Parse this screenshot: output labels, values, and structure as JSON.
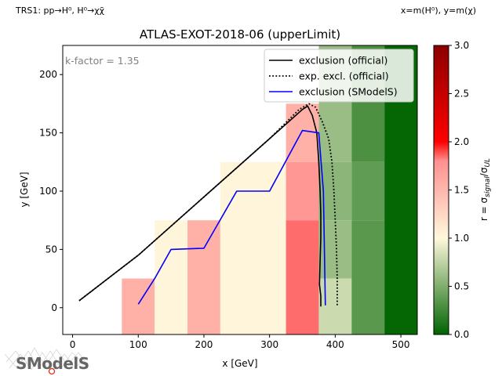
{
  "header": {
    "process_label": "TRS1: pp→H⁰, H⁰→χχ̄",
    "axes_note": "x=m(H⁰), y=m(χ)"
  },
  "logo": {
    "text": "SModelS"
  },
  "chart_data": {
    "type": "heatmap",
    "title": "ATLAS-EXOT-2018-06 (upperLimit)",
    "xlabel": "x [GeV]",
    "ylabel": "y [GeV]",
    "xlim": [
      -15,
      525
    ],
    "ylim": [
      -23,
      225
    ],
    "xticks": [
      0,
      100,
      200,
      300,
      400,
      500
    ],
    "yticks": [
      0,
      50,
      100,
      150,
      200
    ],
    "annotation": "k-factor = 1.35",
    "colorbar": {
      "label": "r = σsignal/σUL",
      "range": [
        0,
        3
      ],
      "ticks": [
        0.0,
        0.5,
        1.0,
        1.5,
        2.0,
        2.5,
        3.0
      ],
      "stops": [
        {
          "v": 0.0,
          "color": "#006400"
        },
        {
          "v": 1.0,
          "color": "#fff8dc"
        },
        {
          "v": 1.8,
          "color": "#ff9090"
        },
        {
          "v": 2.0,
          "color": "#ff0000"
        },
        {
          "v": 3.0,
          "color": "#8b0000"
        }
      ]
    },
    "cells": [
      {
        "x0": 75,
        "x1": 125,
        "y0": -23,
        "y1": 25,
        "r": 1.55
      },
      {
        "x0": 125,
        "x1": 175,
        "y0": -23,
        "y1": 75,
        "r": 1.02
      },
      {
        "x0": 175,
        "x1": 225,
        "y0": -23,
        "y1": 75,
        "r": 1.55
      },
      {
        "x0": 225,
        "x1": 325,
        "y0": -23,
        "y1": 125,
        "r": 1.02
      },
      {
        "x0": 325,
        "x1": 375,
        "y0": 125,
        "y1": 175,
        "r": 1.55
      },
      {
        "x0": 325,
        "x1": 375,
        "y0": 75,
        "y1": 125,
        "r": 1.75
      },
      {
        "x0": 325,
        "x1": 375,
        "y0": -23,
        "y1": 75,
        "r": 1.85
      },
      {
        "x0": 375,
        "x1": 425,
        "y0": 125,
        "y1": 225,
        "r": 0.6
      },
      {
        "x0": 375,
        "x1": 425,
        "y0": 75,
        "y1": 125,
        "r": 0.55
      },
      {
        "x0": 375,
        "x1": 425,
        "y0": 25,
        "y1": 75,
        "r": 0.6
      },
      {
        "x0": 375,
        "x1": 425,
        "y0": -23,
        "y1": 25,
        "r": 0.8
      },
      {
        "x0": 425,
        "x1": 475,
        "y0": 125,
        "y1": 225,
        "r": 0.3
      },
      {
        "x0": 425,
        "x1": 475,
        "y0": 75,
        "y1": 125,
        "r": 0.38
      },
      {
        "x0": 425,
        "x1": 475,
        "y0": -23,
        "y1": 75,
        "r": 0.35
      },
      {
        "x0": 475,
        "x1": 525,
        "y0": -23,
        "y1": 225,
        "r": 0.02
      }
    ],
    "series": [
      {
        "name": "exclusion (official)",
        "style": "solid",
        "color": "#000000",
        "x": [
          10,
          100,
          200,
          300,
          350,
          358,
          365,
          372,
          375,
          377,
          378,
          378,
          377,
          376,
          378,
          378
        ],
        "y": [
          6,
          45,
          95,
          145,
          170,
          173,
          165,
          150,
          125,
          100,
          80,
          60,
          40,
          20,
          10,
          1
        ]
      },
      {
        "name": "exp. excl. (official)",
        "style": "dotted",
        "color": "#000000",
        "x": [
          10,
          100,
          200,
          300,
          345,
          360,
          370,
          380,
          390,
          395,
          398,
          400,
          402,
          403,
          403
        ],
        "y": [
          6,
          45,
          95,
          145,
          170,
          175,
          172,
          160,
          145,
          125,
          100,
          75,
          50,
          25,
          2
        ]
      },
      {
        "name": "exclusion (SModelS)",
        "style": "solid",
        "color": "#0000ff",
        "x": [
          100,
          125,
          150,
          200,
          250,
          300,
          350,
          375,
          382,
          385
        ],
        "y": [
          3,
          25,
          50,
          51,
          100,
          100,
          152,
          150,
          100,
          2
        ]
      }
    ],
    "legend": "top-right"
  }
}
